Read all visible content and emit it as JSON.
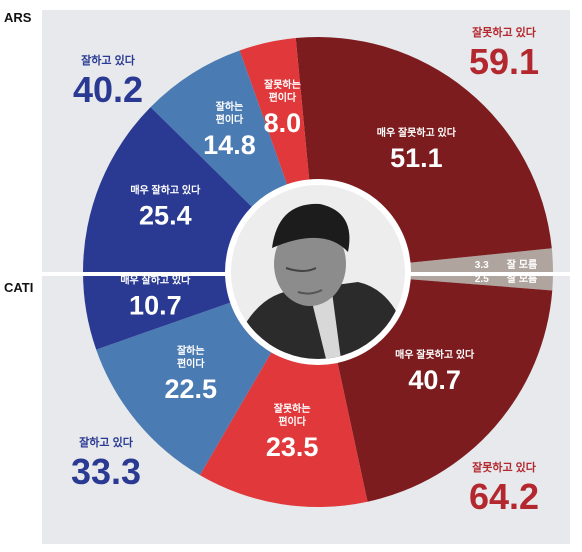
{
  "chart_data": {
    "type": "pie",
    "colors": {
      "background": "#e7e9ec",
      "very_good": "#2a3a92",
      "somewhat_good": "#4b7bb3",
      "somewhat_bad": "#e0383b",
      "very_bad": "#7c1c1f",
      "unknown": "#b0a49e",
      "positive_text": "#2a3a92",
      "negative_text": "#b3282e"
    },
    "surveys": [
      {
        "name": "ARS",
        "slices": [
          {
            "key": "very_bad",
            "label_lines": [
              "매우 잘못하고 있다"
            ],
            "value": 51.1
          },
          {
            "key": "somewhat_bad",
            "label_lines": [
              "잘못하는",
              "편이다"
            ],
            "value": 8.0
          },
          {
            "key": "somewhat_good",
            "label_lines": [
              "잘하는",
              "편이다"
            ],
            "value": 14.8
          },
          {
            "key": "very_good",
            "label_lines": [
              "매우 잘하고 있다"
            ],
            "value": 25.4
          },
          {
            "key": "unknown",
            "label_lines": [
              "잘 모름"
            ],
            "value": 3.3
          }
        ],
        "totals": [
          {
            "label": "잘하고 있다",
            "value": 40.2,
            "tone": "positive"
          },
          {
            "label": "잘못하고 있다",
            "value": 59.1,
            "tone": "negative"
          }
        ]
      },
      {
        "name": "CATI",
        "slices": [
          {
            "key": "very_bad",
            "label_lines": [
              "매우 잘못하고 있다"
            ],
            "value": 40.7
          },
          {
            "key": "somewhat_bad",
            "label_lines": [
              "잘못하는",
              "편이다"
            ],
            "value": 23.5
          },
          {
            "key": "somewhat_good",
            "label_lines": [
              "잘하는",
              "편이다"
            ],
            "value": 22.5
          },
          {
            "key": "very_good",
            "label_lines": [
              "매우 잘하고 있다"
            ],
            "value": 10.7
          },
          {
            "key": "unknown",
            "label_lines": [
              "잘 모름"
            ],
            "value": 2.5
          }
        ],
        "totals": [
          {
            "label": "잘하고 있다",
            "value": 33.3,
            "tone": "positive"
          },
          {
            "label": "잘못하고 있다",
            "value": 64.2,
            "tone": "negative"
          }
        ]
      }
    ]
  }
}
